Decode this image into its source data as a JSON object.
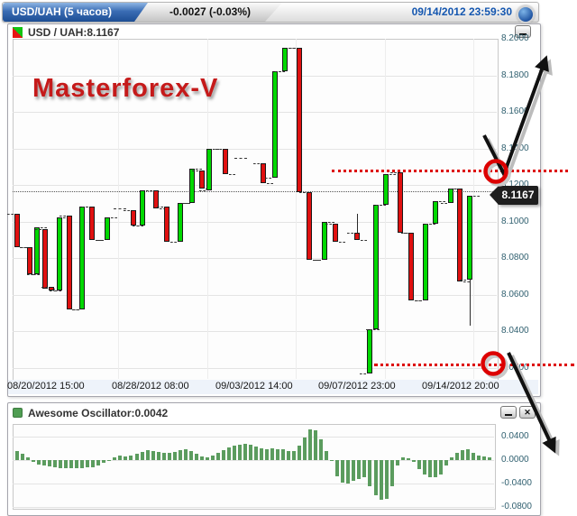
{
  "top_bar": {
    "symbol_tab": "USD/UAH (5 часов)",
    "change_text": "-0.0027 (-0.03%)",
    "datetime": "09/14/2012 23:59:30"
  },
  "main_panel": {
    "title": "USD / UAH:8.1167",
    "watermark": "Masterforex-V",
    "tooltip_price": "8.1167"
  },
  "oscillator_panel": {
    "title": "Awesome Oscillator:0.0042",
    "close_glyph": "✕"
  },
  "colors": {
    "candle_up": "#00d800",
    "candle_down": "#e01010",
    "candle_border": "#1a1a1a",
    "oscillator_bar": "#5b9c5e",
    "annotation_red": "#dd0000",
    "datetime_blue": "#1557b0",
    "watermark_red": "#c51a1a",
    "axis_label": "#2f5f6f"
  },
  "chart_data": [
    {
      "type": "candlestick",
      "symbol": "USD/UAH",
      "timeframe": "5 hours",
      "current_price": 8.1167,
      "resistance_level": 8.128,
      "support_level": 8.021,
      "ylim": [
        8.014,
        8.2
      ],
      "grid": true,
      "y_ticks": [
        "8.2000",
        "8.1800",
        "8.1600",
        "8.1400",
        "8.1200",
        "8.1000",
        "8.0800",
        "8.0600",
        "8.0400",
        "8.0200"
      ],
      "x_labels": [
        "08/20/2012 15:00",
        "08/28/2012 08:00",
        "09/03/2012 14:00",
        "09/07/2012 23:00",
        "09/14/2012 20:00"
      ],
      "candles": [
        {
          "x": 5,
          "o": 8.104,
          "c": 8.086
        },
        {
          "x": 19,
          "o": 8.086,
          "c": 8.071
        },
        {
          "x": 27,
          "o": 8.071,
          "c": 8.097
        },
        {
          "x": 36,
          "o": 8.096,
          "c": 8.063
        },
        {
          "x": 43,
          "o": 8.064,
          "c": 8.062
        },
        {
          "x": 52,
          "o": 8.062,
          "c": 8.102
        },
        {
          "x": 63,
          "o": 8.103,
          "c": 8.052
        },
        {
          "x": 77,
          "o": 8.052,
          "c": 8.108
        },
        {
          "x": 88,
          "o": 8.108,
          "c": 8.09
        },
        {
          "x": 105,
          "o": 8.09,
          "c": 8.102
        },
        {
          "x": 119,
          "o": 8.107,
          "c": 8.107
        },
        {
          "x": 134,
          "o": 8.106,
          "c": 8.098
        },
        {
          "x": 144,
          "o": 8.098,
          "c": 8.117
        },
        {
          "x": 159,
          "o": 8.117,
          "c": 8.107
        },
        {
          "x": 171,
          "o": 8.108,
          "c": 8.089
        },
        {
          "x": 186,
          "o": 8.089,
          "c": 8.11
        },
        {
          "x": 199,
          "o": 8.11,
          "c": 8.129
        },
        {
          "x": 210,
          "o": 8.128,
          "c": 8.118
        },
        {
          "x": 218,
          "o": 8.117,
          "c": 8.14
        },
        {
          "x": 236,
          "o": 8.14,
          "c": 8.126
        },
        {
          "x": 253,
          "o": 8.135,
          "c": 8.135
        },
        {
          "x": 278,
          "o": 8.132,
          "c": 8.121
        },
        {
          "x": 291,
          "o": 8.124,
          "c": 8.182
        },
        {
          "x": 302,
          "o": 8.182,
          "c": 8.195
        },
        {
          "x": 318,
          "o": 8.195,
          "c": 8.116
        },
        {
          "x": 329,
          "o": 8.116,
          "c": 8.079
        },
        {
          "x": 346,
          "o": 8.079,
          "c": 8.1
        },
        {
          "x": 358,
          "o": 8.099,
          "c": 8.089
        },
        {
          "x": 382,
          "o": 8.094,
          "c": 8.09,
          "h": 8.104
        },
        {
          "x": 396,
          "o": 8.017,
          "c": 8.041
        },
        {
          "x": 403,
          "o": 8.041,
          "c": 8.109
        },
        {
          "x": 414,
          "o": 8.109,
          "c": 8.126
        },
        {
          "x": 430,
          "o": 8.127,
          "c": 8.094
        },
        {
          "x": 442,
          "o": 8.094,
          "c": 8.057
        },
        {
          "x": 458,
          "o": 8.057,
          "c": 8.099
        },
        {
          "x": 469,
          "o": 8.099,
          "c": 8.111
        },
        {
          "x": 486,
          "o": 8.11,
          "c": 8.118
        },
        {
          "x": 496,
          "o": 8.118,
          "c": 8.067
        },
        {
          "x": 507,
          "o": 8.068,
          "c": 8.114,
          "l": 8.043
        }
      ]
    },
    {
      "type": "bar",
      "name": "Awesome Oscillator",
      "last_value": 0.0042,
      "ylim": [
        -0.0815,
        0.0615
      ],
      "grid": true,
      "y_ticks": [
        "0.0400",
        "0.0000",
        "-0.0400",
        "-0.0800"
      ],
      "values": [
        0.015,
        0.01,
        0.004,
        -0.003,
        -0.007,
        -0.009,
        -0.011,
        -0.013,
        -0.014,
        -0.014,
        -0.014,
        -0.014,
        -0.014,
        -0.013,
        -0.012,
        -0.009,
        -0.005,
        -0.002,
        0.005,
        0.007,
        0.006,
        0.008,
        0.01,
        0.014,
        0.017,
        0.016,
        0.014,
        0.013,
        0.012,
        0.014,
        0.017,
        0.018,
        0.015,
        0.011,
        0.006,
        0.005,
        0.008,
        0.012,
        0.017,
        0.021,
        0.024,
        0.026,
        0.028,
        0.026,
        0.023,
        0.02,
        0.019,
        0.02,
        0.019,
        0.018,
        0.015,
        0.016,
        0.024,
        0.039,
        0.053,
        0.051,
        0.036,
        0.015,
        -0.001,
        -0.028,
        -0.038,
        -0.04,
        -0.035,
        -0.033,
        -0.03,
        -0.045,
        -0.06,
        -0.068,
        -0.066,
        -0.045,
        -0.01,
        0.005,
        0.003,
        -0.003,
        -0.015,
        -0.025,
        -0.03,
        -0.03,
        -0.025,
        -0.01,
        0.004,
        0.013,
        0.017,
        0.018,
        0.013,
        0.008,
        0.006,
        0.0042
      ]
    }
  ]
}
